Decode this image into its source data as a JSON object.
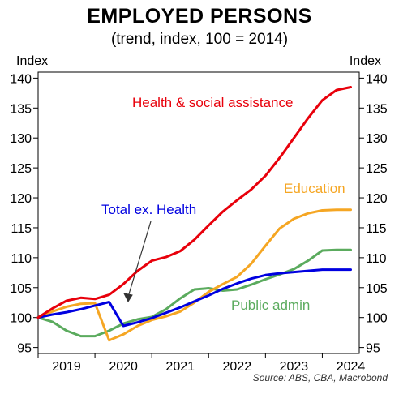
{
  "chart_data": {
    "type": "line",
    "title": "EMPLOYED PERSONS",
    "subtitle": "(trend, index, 100 = 2014)",
    "ylabel_left": "Index",
    "ylabel_right": "Index",
    "source": "Source: ABS, CBA, Macrobond",
    "ylim": [
      94,
      141
    ],
    "xlim": [
      2018.5,
      2024.15
    ],
    "yticks": [
      95,
      100,
      105,
      110,
      115,
      120,
      125,
      130,
      135,
      140
    ],
    "xticks": [
      {
        "label": "2019",
        "value": 2019.0
      },
      {
        "label": "2020",
        "value": 2020.0
      },
      {
        "label": "2021",
        "value": 2021.0
      },
      {
        "label": "2022",
        "value": 2022.0
      },
      {
        "label": "2023",
        "value": 2023.0
      },
      {
        "label": "2024",
        "value": 2024.0
      }
    ],
    "grid": false,
    "series": [
      {
        "name": "Health & social assistance",
        "color": "#e8000b",
        "x": [
          2018.5,
          2018.75,
          2019.0,
          2019.25,
          2019.5,
          2019.75,
          2020.0,
          2020.25,
          2020.5,
          2020.75,
          2021.0,
          2021.25,
          2021.5,
          2021.75,
          2022.0,
          2022.25,
          2022.5,
          2022.75,
          2023.0,
          2023.25,
          2023.5,
          2023.75,
          2024.0
        ],
        "y": [
          100.0,
          101.5,
          102.8,
          103.3,
          103.1,
          103.8,
          105.6,
          107.8,
          109.5,
          110.1,
          111.1,
          113.0,
          115.4,
          117.7,
          119.6,
          121.4,
          123.7,
          126.7,
          130.0,
          133.3,
          136.3,
          138.0,
          138.5
        ]
      },
      {
        "name": "Education",
        "color": "#f5a623",
        "x": [
          2018.5,
          2018.75,
          2019.0,
          2019.25,
          2019.5,
          2019.75,
          2020.0,
          2020.25,
          2020.5,
          2020.75,
          2021.0,
          2021.25,
          2021.5,
          2021.75,
          2022.0,
          2022.25,
          2022.5,
          2022.75,
          2023.0,
          2023.25,
          2023.5,
          2023.75,
          2024.0
        ],
        "y": [
          100.0,
          101.0,
          101.8,
          102.3,
          102.4,
          96.2,
          97.2,
          98.6,
          99.6,
          100.2,
          101.0,
          102.5,
          104.3,
          105.6,
          106.8,
          109.0,
          112.0,
          114.9,
          116.5,
          117.4,
          117.9,
          118.0,
          118.0
        ]
      },
      {
        "name": "Total ex. Health",
        "color": "#0000e0",
        "x": [
          2018.5,
          2018.75,
          2019.0,
          2019.25,
          2019.5,
          2019.75,
          2020.0,
          2020.25,
          2020.5,
          2020.75,
          2021.0,
          2021.25,
          2021.5,
          2021.75,
          2022.0,
          2022.25,
          2022.5,
          2022.75,
          2023.0,
          2023.25,
          2023.5,
          2023.75,
          2024.0
        ],
        "y": [
          100.0,
          100.5,
          100.9,
          101.4,
          102.0,
          102.6,
          98.6,
          99.2,
          99.9,
          100.8,
          101.7,
          102.7,
          103.7,
          104.8,
          105.7,
          106.5,
          107.1,
          107.4,
          107.6,
          107.8,
          108.0,
          108.0,
          108.0
        ]
      },
      {
        "name": "Public admin",
        "color": "#5bab5e",
        "x": [
          2018.5,
          2018.75,
          2019.0,
          2019.25,
          2019.5,
          2019.75,
          2020.0,
          2020.25,
          2020.5,
          2020.75,
          2021.0,
          2021.25,
          2021.5,
          2021.75,
          2022.0,
          2022.25,
          2022.5,
          2022.75,
          2023.0,
          2023.25,
          2023.5,
          2023.75,
          2024.0
        ],
        "y": [
          100.0,
          99.3,
          97.8,
          96.9,
          96.9,
          97.8,
          99.0,
          99.7,
          100.1,
          101.4,
          103.2,
          104.7,
          104.9,
          104.5,
          104.7,
          105.5,
          106.4,
          107.2,
          108.1,
          109.5,
          111.2,
          111.3,
          111.3
        ]
      }
    ],
    "annotations": [
      {
        "text": "Health & social assistance",
        "color": "#e8000b",
        "series": "Health & social assistance"
      },
      {
        "text": "Education",
        "color": "#f5a623",
        "series": "Education"
      },
      {
        "text": "Total ex. Health",
        "color": "#0000e0",
        "series": "Total ex. Health"
      },
      {
        "text": "Public admin",
        "color": "#5bab5e",
        "series": "Public admin"
      }
    ]
  }
}
